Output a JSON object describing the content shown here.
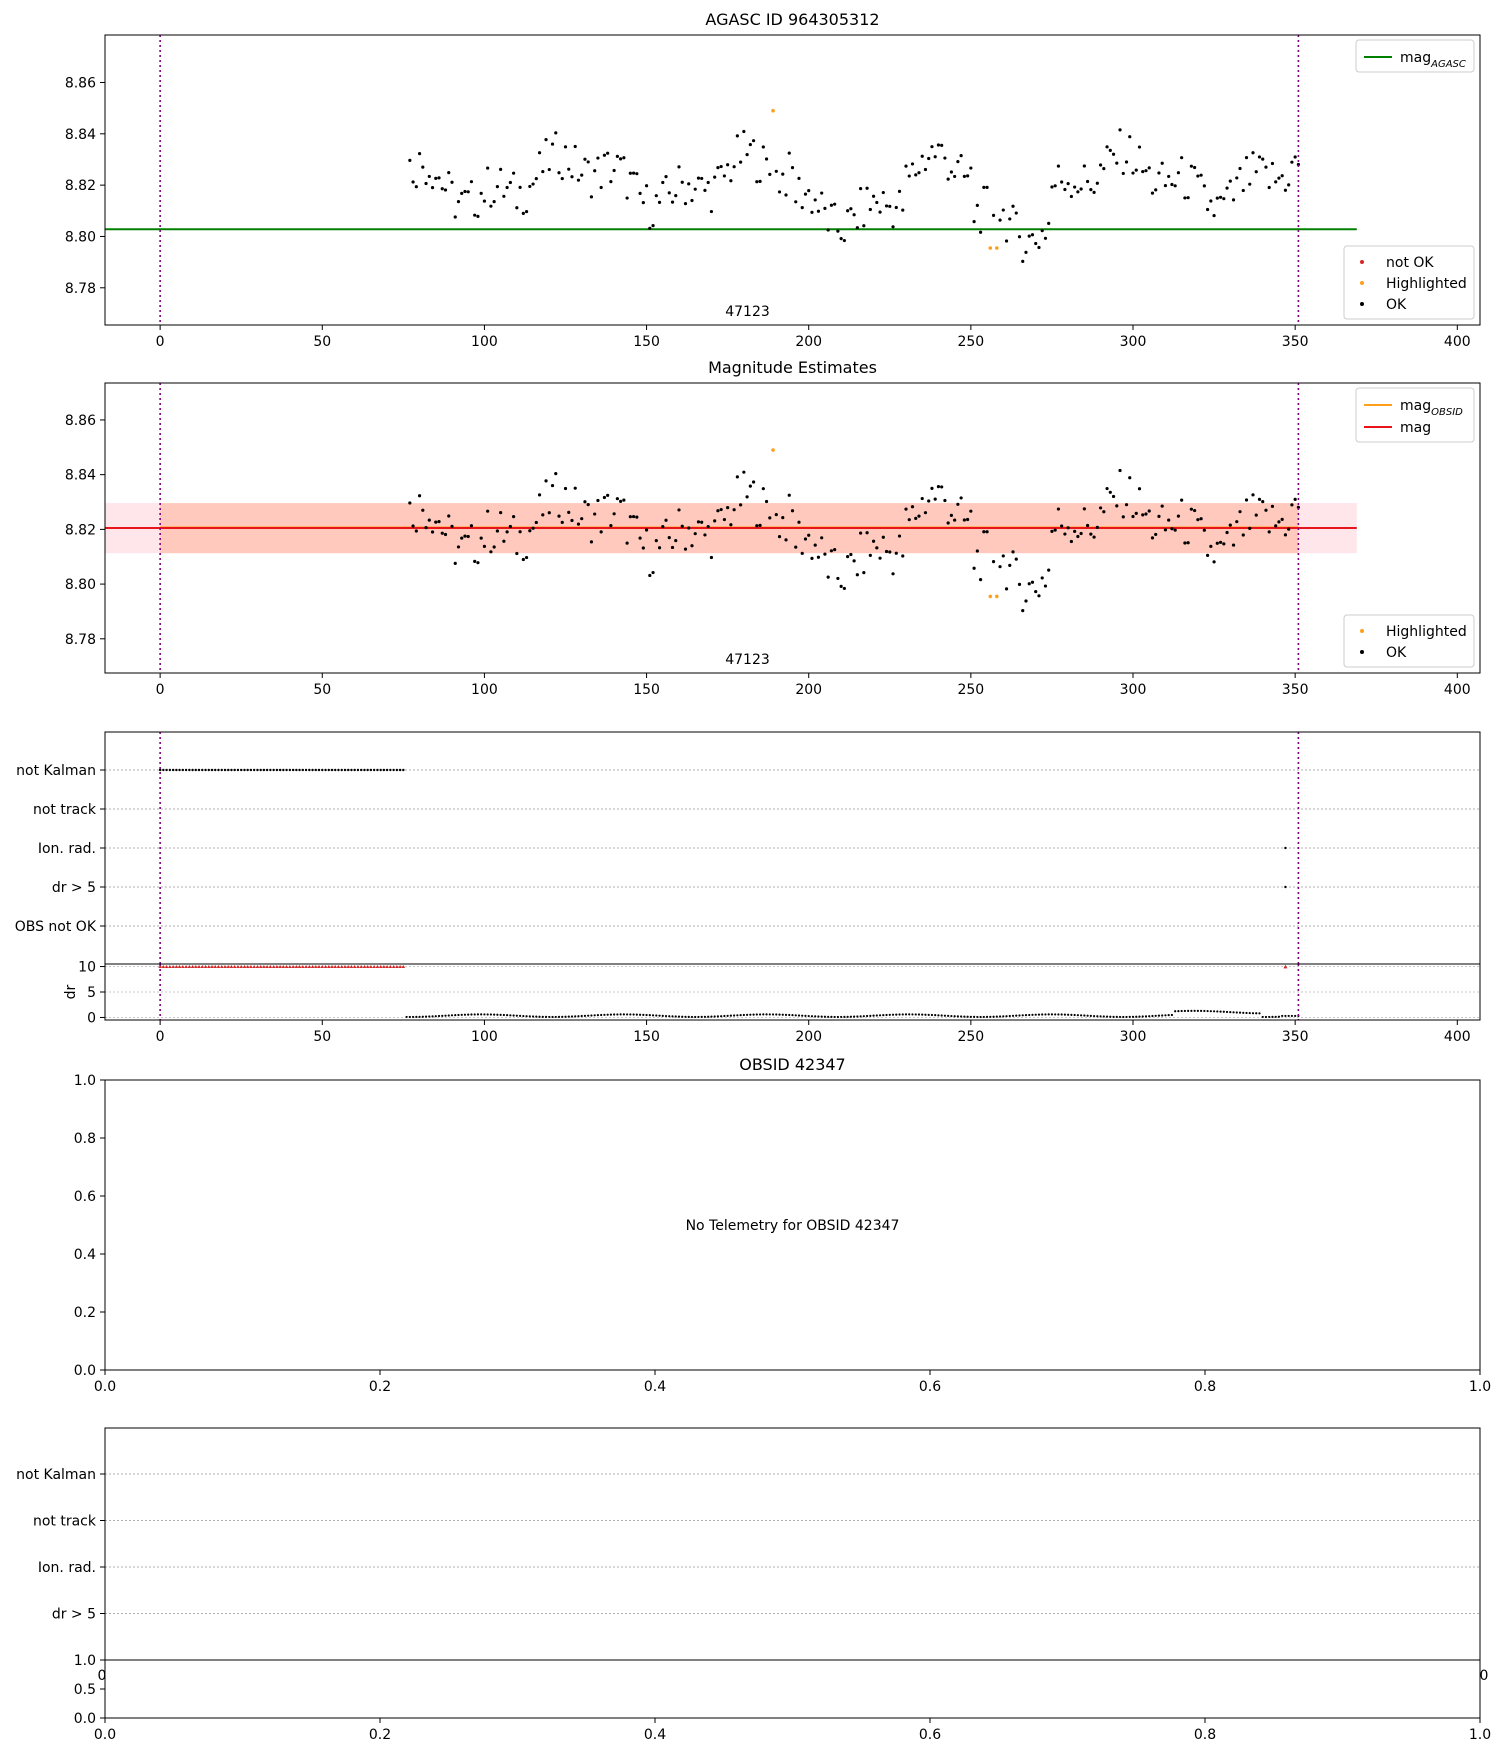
{
  "chart_data": [
    {
      "panel": "agasc-magnitude",
      "type": "scatter",
      "title": "AGASC ID 964305312",
      "xlabel": "",
      "ylabel": "",
      "xlim": [
        -17,
        407
      ],
      "ylim": [
        8.7655,
        8.8785
      ],
      "xticks": [
        0,
        50,
        100,
        150,
        200,
        250,
        300,
        350,
        400
      ],
      "yticks": [
        8.78,
        8.8,
        8.82,
        8.84,
        8.86
      ],
      "ytick_labels": [
        "8.78",
        "8.80",
        "8.82",
        "8.84",
        "8.86"
      ],
      "annotation": "47123",
      "vlines": [
        0,
        351
      ],
      "hline": {
        "name": "mag",
        "subscript": "AGASC",
        "value": 8.8028,
        "x_range": [
          -17,
          369
        ],
        "color": "#008000"
      },
      "legend_lines": [
        {
          "name": "mag",
          "subscript": "AGASC",
          "color": "#008000"
        }
      ],
      "legend_points": [
        {
          "name": "not OK",
          "color": "#d62728"
        },
        {
          "name": "Highlighted",
          "color": "#ff9f1c"
        },
        {
          "name": "OK",
          "color": "#000000"
        }
      ],
      "highlighted": {
        "x": [
          189,
          256,
          258
        ],
        "y": [
          8.849,
          8.7955,
          8.7955
        ]
      },
      "ok_range": {
        "x_start": 77,
        "x_end": 351,
        "step": 1
      }
    },
    {
      "panel": "magnitude-estimates",
      "type": "scatter",
      "title": "Magnitude Estimates",
      "xlabel": "",
      "ylabel": "",
      "xlim": [
        -17,
        407
      ],
      "ylim": [
        8.7675,
        8.8735
      ],
      "xticks": [
        0,
        50,
        100,
        150,
        200,
        250,
        300,
        350,
        400
      ],
      "yticks": [
        8.78,
        8.8,
        8.82,
        8.84,
        8.86
      ],
      "ytick_labels": [
        "8.78",
        "8.80",
        "8.82",
        "8.84",
        "8.86"
      ],
      "annotation": "47123",
      "vlines": [
        0,
        351
      ],
      "bands": [
        {
          "x_range": [
            -17,
            369
          ],
          "y_range": [
            8.8113,
            8.8296
          ],
          "color": "#ffc0cb"
        },
        {
          "x_range": [
            0,
            351
          ],
          "y_range": [
            8.8113,
            8.8296
          ],
          "color": "#ffa07a"
        }
      ],
      "lines": [
        {
          "name": "mag",
          "subscript": "OBSID",
          "value": 8.8207,
          "x_range": [
            0,
            351
          ],
          "color": "#ff9f1c"
        },
        {
          "name": "mag",
          "subscript": "",
          "value": 8.8205,
          "x_range": [
            -17,
            369
          ],
          "color": "#e8141a"
        }
      ],
      "legend_points": [
        {
          "name": "Highlighted",
          "color": "#ff9f1c"
        },
        {
          "name": "OK",
          "color": "#000000"
        }
      ],
      "highlighted": {
        "x": [
          189,
          256,
          258
        ],
        "y": [
          8.849,
          8.7955,
          8.7955
        ]
      },
      "ok_range": {
        "x_start": 77,
        "x_end": 351,
        "step": 1
      }
    },
    {
      "panel": "flags-1",
      "type": "scatter",
      "title": "",
      "categories": [
        "not Kalman",
        "not track",
        "Ion. rad.",
        "dr > 5",
        "OBS not OK"
      ],
      "xlim": [
        -17,
        407
      ],
      "vlines": [
        0,
        351
      ],
      "flag_points": [
        {
          "category": "not Kalman",
          "x_start": 0,
          "x_end": 75,
          "step": 1
        },
        {
          "category": "Ion. rad.",
          "x": [
            347
          ]
        },
        {
          "category": "dr > 5",
          "x": [
            347
          ]
        }
      ]
    },
    {
      "panel": "dr-1",
      "type": "scatter",
      "title": "",
      "ylabel": "dr",
      "xlim": [
        -17,
        407
      ],
      "ylim": [
        -0.5,
        10.5
      ],
      "xticks": [
        0,
        50,
        100,
        150,
        200,
        250,
        300,
        350,
        400
      ],
      "yticks": [
        0,
        5,
        10
      ],
      "vlines": [
        0,
        351
      ],
      "clipped": {
        "x_start": 0,
        "x_end": 75,
        "value": 10,
        "color": "#d62728"
      },
      "clipped_extra": [
        347
      ],
      "ok_range": {
        "x_start": 76,
        "x_end": 351,
        "step": 1
      }
    },
    {
      "panel": "obsid-empty",
      "type": "scatter",
      "title": "OBSID 42347",
      "message": "No Telemetry for OBSID 42347",
      "xlim": [
        0,
        1
      ],
      "ylim": [
        0,
        1
      ],
      "xticks": [
        0,
        0.2,
        0.4,
        0.6,
        0.8,
        1.0
      ],
      "xtick_labels": [
        "0.0",
        "0.2",
        "0.4",
        "0.6",
        "0.8",
        "1.0"
      ],
      "yticks": [
        0,
        0.2,
        0.4,
        0.6,
        0.8,
        1.0
      ],
      "ytick_labels": [
        "0.0",
        "0.2",
        "0.4",
        "0.6",
        "0.8",
        "1.0"
      ]
    },
    {
      "panel": "flags-2",
      "type": "scatter",
      "title": "",
      "categories": [
        "not Kalman",
        "not track",
        "Ion. rad.",
        "dr > 5"
      ],
      "hidden_x_tick_labels": [
        "0",
        "0"
      ]
    },
    {
      "panel": "dr-2",
      "type": "scatter",
      "title": "",
      "xlim": [
        0,
        1
      ],
      "ylim": [
        0,
        1
      ],
      "xticks": [
        0,
        0.2,
        0.4,
        0.6,
        0.8,
        1.0
      ],
      "xtick_labels": [
        "0.0",
        "0.2",
        "0.4",
        "0.6",
        "0.8",
        "1.0"
      ],
      "yticks": [
        0,
        0.5,
        1.0
      ],
      "ytick_labels": [
        "0.0",
        "0.5",
        "1.0"
      ]
    }
  ]
}
